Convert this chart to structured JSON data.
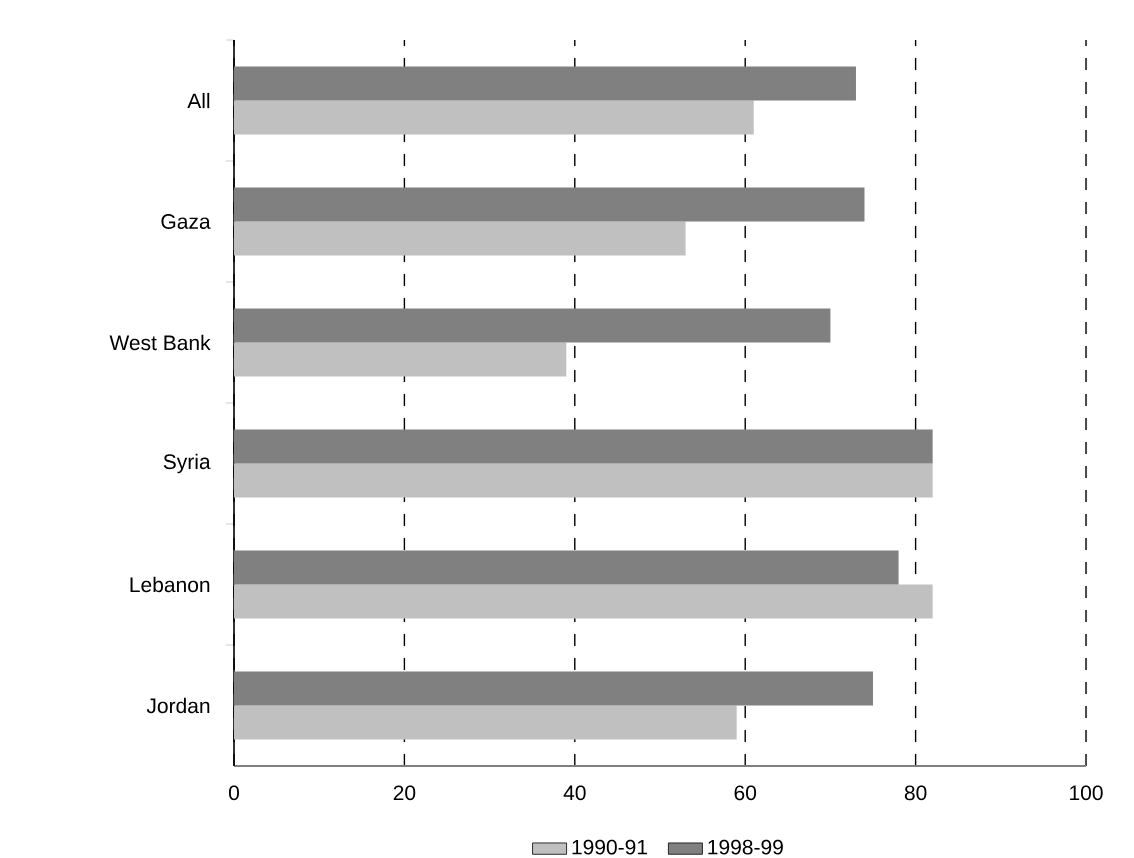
{
  "chart_data": {
    "type": "bar",
    "orientation": "horizontal",
    "categories": [
      "All",
      "Gaza",
      "West Bank",
      "Syria",
      "Lebanon",
      "Jordan"
    ],
    "series": [
      {
        "name": "1990-91",
        "color": "#c0c0c0",
        "values": [
          61,
          53,
          39,
          82,
          82,
          59
        ]
      },
      {
        "name": "1998-99",
        "color": "#808080",
        "values": [
          73,
          74,
          70,
          82,
          78,
          75
        ]
      }
    ],
    "xlim": [
      0,
      100
    ],
    "xticks": [
      0,
      20,
      40,
      60,
      80,
      100
    ],
    "grid": "x",
    "legend": "bottom"
  }
}
